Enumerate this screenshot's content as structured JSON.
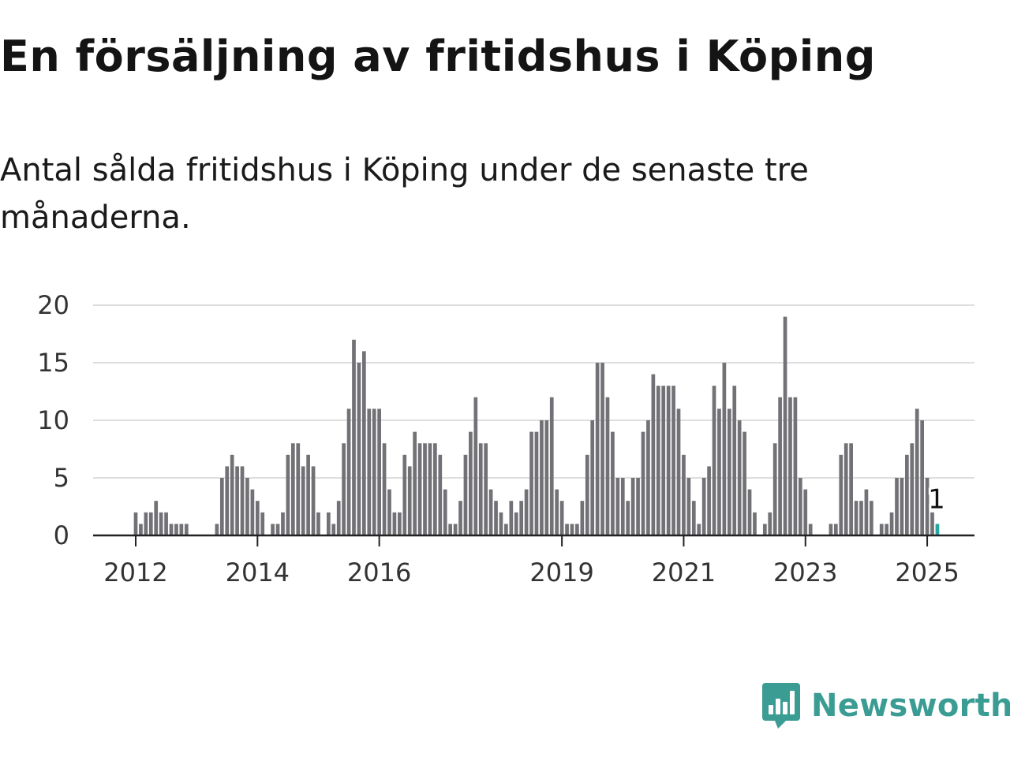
{
  "title": "En försäljning av fritidshus i Köping",
  "subtitle": "Antal sålda fritidshus i Köping under de senaste tre månaderna.",
  "brand": {
    "name": "Newsworthy",
    "icon": "newsworthy-logo-icon",
    "color": "#3b9c94"
  },
  "colors": {
    "bar": "#727176",
    "highlight": "#27a6a0",
    "grid": "#dedede",
    "axis": "#222222"
  },
  "chart_data": {
    "type": "bar",
    "x_ticks": [
      "2012",
      "2014",
      "2016",
      "2019",
      "2021",
      "2023",
      "2025"
    ],
    "y_ticks": [
      0,
      5,
      10,
      15,
      20
    ],
    "ylim": [
      0,
      20
    ],
    "grid": true,
    "annotation": {
      "text": "1",
      "target": "last bar"
    },
    "series": [
      {
        "values": [
          2,
          1,
          2,
          2,
          3,
          2,
          2,
          1,
          1,
          1,
          1,
          0,
          0,
          0,
          0,
          0,
          1,
          5,
          6,
          7,
          6,
          6,
          5,
          4,
          3,
          2,
          0,
          1,
          1,
          2,
          7,
          8,
          8,
          6,
          7,
          6,
          2,
          0,
          2,
          1,
          3,
          8,
          11,
          17,
          15,
          16,
          11,
          11,
          11,
          8,
          4,
          2,
          2,
          7,
          6,
          9,
          8,
          8,
          8,
          8,
          7,
          4,
          1,
          1,
          3,
          7,
          9,
          12,
          8,
          8,
          4,
          3,
          2,
          1,
          3,
          2,
          3,
          4,
          9,
          9,
          10,
          10,
          12,
          4,
          3,
          1,
          1,
          1,
          3,
          7,
          10,
          15,
          15,
          12,
          9,
          5,
          5,
          3,
          5,
          5,
          9,
          10,
          14,
          13,
          13,
          13,
          13,
          11,
          7,
          5,
          3,
          1,
          5,
          6,
          13,
          11,
          15,
          11,
          13,
          10,
          9,
          4,
          2,
          0,
          1,
          2,
          8,
          12,
          19,
          12,
          12,
          5,
          4,
          1,
          0,
          0,
          0,
          1,
          1,
          7,
          8,
          8,
          3,
          3,
          4,
          3,
          0,
          1,
          1,
          2,
          5,
          5,
          7,
          8,
          11,
          10,
          5,
          2,
          1
        ]
      }
    ]
  }
}
